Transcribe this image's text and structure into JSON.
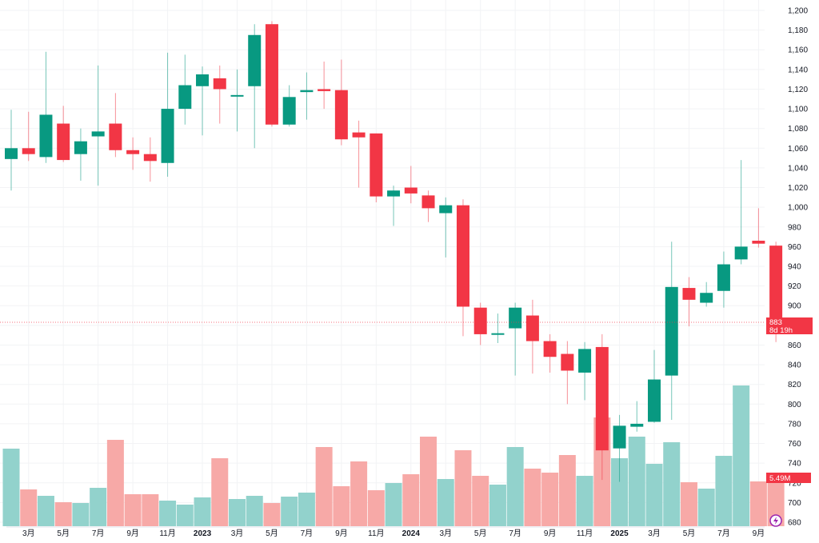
{
  "chart_data": {
    "type": "candlestick",
    "interval": "monthly",
    "ylim": [
      680,
      1200
    ],
    "y_ticks": [
      680,
      700,
      720,
      740,
      760,
      780,
      800,
      820,
      840,
      860,
      880,
      900,
      920,
      940,
      960,
      980,
      1000,
      1020,
      1040,
      1060,
      1080,
      1100,
      1120,
      1140,
      1160,
      1180,
      1200
    ],
    "y_tick_labels": [
      "680",
      "700",
      "720",
      "740",
      "760",
      "780",
      "800",
      "820",
      "840",
      "860",
      "880",
      "900",
      "920",
      "940",
      "960",
      "980",
      "1,000",
      "1,020",
      "1,040",
      "1,060",
      "1,080",
      "1,100",
      "1,120",
      "1,140",
      "1,160",
      "1,180",
      "1,200"
    ],
    "x_tick_labels": [
      {
        "index": 1,
        "label": "3月"
      },
      {
        "index": 3,
        "label": "5月"
      },
      {
        "index": 5,
        "label": "7月"
      },
      {
        "index": 7,
        "label": "9月"
      },
      {
        "index": 9,
        "label": "11月"
      },
      {
        "index": 11,
        "label": "2023",
        "bold": true
      },
      {
        "index": 13,
        "label": "3月"
      },
      {
        "index": 15,
        "label": "5月"
      },
      {
        "index": 17,
        "label": "7月"
      },
      {
        "index": 19,
        "label": "9月"
      },
      {
        "index": 21,
        "label": "11月"
      },
      {
        "index": 23,
        "label": "2024",
        "bold": true
      },
      {
        "index": 25,
        "label": "3月"
      },
      {
        "index": 27,
        "label": "5月"
      },
      {
        "index": 29,
        "label": "7月"
      },
      {
        "index": 31,
        "label": "9月"
      },
      {
        "index": 33,
        "label": "11月"
      },
      {
        "index": 35,
        "label": "2025",
        "bold": true
      },
      {
        "index": 37,
        "label": "3月"
      },
      {
        "index": 39,
        "label": "5月"
      },
      {
        "index": 41,
        "label": "7月"
      },
      {
        "index": 43,
        "label": "9月"
      }
    ],
    "ohlc": [
      [
        1049,
        1099,
        1017,
        1060
      ],
      [
        1060,
        1097,
        1047,
        1054
      ],
      [
        1051,
        1158,
        1045,
        1094
      ],
      [
        1085,
        1103,
        1046,
        1048
      ],
      [
        1054,
        1080,
        1027,
        1067
      ],
      [
        1072,
        1144,
        1022,
        1077
      ],
      [
        1085,
        1116,
        1051,
        1058
      ],
      [
        1058,
        1071,
        1038,
        1054
      ],
      [
        1054,
        1071,
        1026,
        1047
      ],
      [
        1045,
        1157,
        1031,
        1100
      ],
      [
        1100,
        1155,
        1084,
        1124
      ],
      [
        1123,
        1143,
        1073,
        1135
      ],
      [
        1131,
        1144,
        1085,
        1120
      ],
      [
        1113,
        1140,
        1077,
        1114
      ],
      [
        1123,
        1186,
        1060,
        1175
      ],
      [
        1186,
        1189,
        1082,
        1084
      ],
      [
        1084,
        1124,
        1082,
        1112
      ],
      [
        1117,
        1137,
        1089,
        1119
      ],
      [
        1120,
        1148,
        1100,
        1118
      ],
      [
        1119,
        1150,
        1063,
        1069
      ],
      [
        1076,
        1088,
        1020,
        1071
      ],
      [
        1075,
        1075,
        1005,
        1011
      ],
      [
        1011,
        1022,
        981,
        1017
      ],
      [
        1020,
        1042,
        1004,
        1014
      ],
      [
        1012,
        1017,
        985,
        999
      ],
      [
        994,
        1010,
        949,
        1002
      ],
      [
        1002,
        1008,
        869,
        899
      ],
      [
        898,
        903,
        860,
        871
      ],
      [
        871,
        892,
        862,
        872
      ],
      [
        877,
        903,
        829,
        898
      ],
      [
        890,
        906,
        831,
        864
      ],
      [
        864,
        871,
        832,
        848
      ],
      [
        851,
        864,
        800,
        834
      ],
      [
        832,
        863,
        804,
        856
      ],
      [
        858,
        871,
        723,
        753
      ],
      [
        755,
        789,
        721,
        778
      ],
      [
        777,
        803,
        772,
        780
      ],
      [
        782,
        855,
        781,
        825
      ],
      [
        829,
        965,
        784,
        919
      ],
      [
        918,
        929,
        879,
        906
      ],
      [
        903,
        924,
        899,
        913
      ],
      [
        915,
        955,
        898,
        942
      ],
      [
        947,
        1048,
        942,
        960
      ],
      [
        966,
        999,
        959,
        963
      ],
      [
        961,
        965,
        863,
        883
      ]
    ],
    "volume_millions": [
      8.73,
      4.14,
      3.42,
      2.7,
      2.61,
      4.32,
      9.72,
      3.6,
      3.6,
      2.88,
      2.43,
      3.24,
      7.65,
      3.06,
      3.42,
      2.61,
      3.33,
      3.78,
      8.91,
      4.5,
      7.29,
      4.05,
      4.86,
      5.85,
      10.08,
      5.31,
      8.55,
      5.67,
      4.68,
      8.91,
      6.48,
      6.03,
      8.01,
      5.67,
      12.24,
      7.65,
      10.08,
      7.02,
      9.45,
      4.95,
      4.23,
      7.92,
      15.84,
      5.04,
      5.49
    ],
    "last_price_label": "883",
    "countdown_label": "8d 19h",
    "last_volume_label": "5.49M",
    "colors": {
      "up": "#089981",
      "down": "#F23645",
      "vol_up": "#92D2CC",
      "vol_down": "#F7A9A7",
      "grid": "#F2F3F5"
    }
  },
  "icons": {
    "bottom_right": "lightning-icon"
  }
}
